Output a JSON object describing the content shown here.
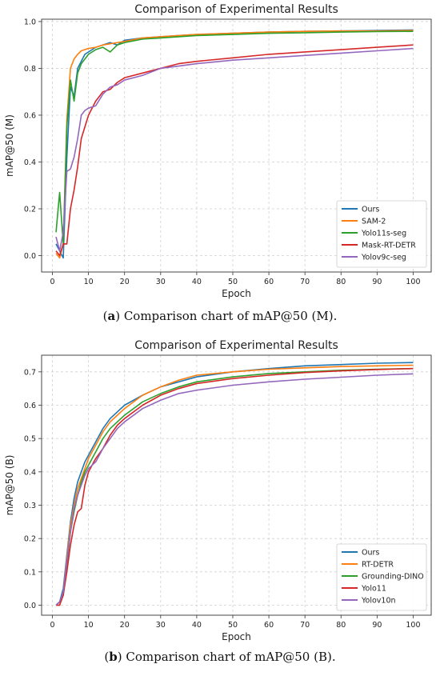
{
  "colors": {
    "c1": "#1f77b4",
    "c2": "#ff7f0e",
    "c3": "#2ca02c",
    "c4": "#d62728",
    "c5": "#9467bd"
  },
  "chart_data": [
    {
      "type": "line",
      "title": "Comparison of Experimental Results",
      "xlabel": "Epoch",
      "ylabel": "mAP@50 (M)",
      "xlim": [
        -3,
        105
      ],
      "ylim": [
        -0.07,
        1.01
      ],
      "xticks": [
        0,
        10,
        20,
        30,
        40,
        50,
        60,
        70,
        80,
        90,
        100
      ],
      "yticks": [
        0.0,
        0.2,
        0.4,
        0.6,
        0.8,
        1.0
      ],
      "ytick_labels": [
        "0.0",
        "0.2",
        "0.4",
        "0.6",
        "0.8",
        "1.0"
      ],
      "grid": true,
      "legend": "lower-right",
      "caption_label": "a",
      "caption_text": "Comparison chart of mAP@50 (M).",
      "x": [
        1,
        2,
        3,
        4,
        5,
        6,
        7,
        8,
        9,
        10,
        12,
        14,
        16,
        18,
        20,
        25,
        30,
        35,
        40,
        50,
        60,
        70,
        80,
        90,
        100
      ],
      "series": [
        {
          "name": "Ours",
          "color": "#1f77b4",
          "values": [
            0.05,
            0.02,
            -0.01,
            0.42,
            0.72,
            0.68,
            0.8,
            0.83,
            0.86,
            0.87,
            0.89,
            0.9,
            0.91,
            0.9,
            0.92,
            0.93,
            0.935,
            0.94,
            0.945,
            0.95,
            0.955,
            0.958,
            0.96,
            0.962,
            0.964
          ]
        },
        {
          "name": "SAM-2",
          "color": "#ff7f0e",
          "values": [
            0.01,
            -0.01,
            0.05,
            0.58,
            0.8,
            0.84,
            0.86,
            0.875,
            0.88,
            0.885,
            0.89,
            0.9,
            0.905,
            0.91,
            0.915,
            0.93,
            0.935,
            0.94,
            0.945,
            0.95,
            0.955,
            0.958,
            0.96,
            0.96,
            0.962
          ]
        },
        {
          "name": "Yolo11s-seg",
          "color": "#2ca02c",
          "values": [
            0.1,
            0.27,
            0.05,
            0.55,
            0.75,
            0.66,
            0.78,
            0.82,
            0.84,
            0.86,
            0.88,
            0.89,
            0.87,
            0.9,
            0.91,
            0.925,
            0.93,
            0.935,
            0.94,
            0.945,
            0.95,
            0.952,
            0.955,
            0.957,
            0.958
          ]
        },
        {
          "name": "Mask-RT-DETR",
          "color": "#d62728",
          "values": [
            0.02,
            0.0,
            0.05,
            0.05,
            0.2,
            0.28,
            0.38,
            0.5,
            0.55,
            0.6,
            0.66,
            0.7,
            0.71,
            0.74,
            0.76,
            0.78,
            0.8,
            0.82,
            0.83,
            0.845,
            0.86,
            0.87,
            0.88,
            0.89,
            0.9
          ]
        },
        {
          "name": "Yolov9c-seg",
          "color": "#9467bd",
          "values": [
            0.08,
            0.02,
            0.1,
            0.36,
            0.37,
            0.42,
            0.5,
            0.6,
            0.62,
            0.63,
            0.64,
            0.69,
            0.72,
            0.73,
            0.75,
            0.77,
            0.8,
            0.81,
            0.82,
            0.835,
            0.845,
            0.855,
            0.865,
            0.875,
            0.885
          ]
        }
      ]
    },
    {
      "type": "line",
      "title": "Comparison of Experimental Results",
      "xlabel": "Epoch",
      "ylabel": "mAP@50 (B)",
      "xlim": [
        -3,
        105
      ],
      "ylim": [
        -0.03,
        0.75
      ],
      "xticks": [
        0,
        10,
        20,
        30,
        40,
        50,
        60,
        70,
        80,
        90,
        100
      ],
      "yticks": [
        0.0,
        0.1,
        0.2,
        0.3,
        0.4,
        0.5,
        0.6,
        0.7
      ],
      "ytick_labels": [
        "0.0",
        "0.1",
        "0.2",
        "0.3",
        "0.4",
        "0.5",
        "0.6",
        "0.7"
      ],
      "grid": true,
      "legend": "lower-right",
      "caption_label": "b",
      "caption_text": "Comparison chart of mAP@50 (B).",
      "x": [
        1,
        2,
        3,
        4,
        5,
        6,
        7,
        8,
        9,
        10,
        12,
        14,
        16,
        18,
        20,
        25,
        30,
        35,
        40,
        50,
        60,
        70,
        80,
        90,
        100
      ],
      "series": [
        {
          "name": "Ours",
          "color": "#1f77b4",
          "values": [
            0.0,
            0.01,
            0.05,
            0.15,
            0.25,
            0.32,
            0.37,
            0.4,
            0.43,
            0.45,
            0.49,
            0.53,
            0.56,
            0.58,
            0.6,
            0.63,
            0.655,
            0.67,
            0.685,
            0.7,
            0.71,
            0.718,
            0.722,
            0.726,
            0.728
          ]
        },
        {
          "name": "RT-DETR",
          "color": "#ff7f0e",
          "values": [
            0.0,
            0.0,
            0.04,
            0.14,
            0.24,
            0.3,
            0.35,
            0.38,
            0.41,
            0.44,
            0.48,
            0.52,
            0.55,
            0.57,
            0.59,
            0.63,
            0.655,
            0.675,
            0.69,
            0.7,
            0.708,
            0.712,
            0.716,
            0.718,
            0.72
          ]
        },
        {
          "name": "Grounding-DINO",
          "color": "#2ca02c",
          "values": [
            0.0,
            0.01,
            0.03,
            0.12,
            0.22,
            0.28,
            0.33,
            0.37,
            0.4,
            0.42,
            0.46,
            0.5,
            0.53,
            0.55,
            0.57,
            0.61,
            0.635,
            0.655,
            0.67,
            0.685,
            0.695,
            0.7,
            0.705,
            0.708,
            0.71
          ]
        },
        {
          "name": "Yolo11",
          "color": "#d62728",
          "values": [
            0.0,
            0.0,
            0.03,
            0.1,
            0.18,
            0.24,
            0.28,
            0.29,
            0.36,
            0.4,
            0.44,
            0.47,
            0.51,
            0.54,
            0.56,
            0.6,
            0.63,
            0.65,
            0.665,
            0.68,
            0.69,
            0.698,
            0.703,
            0.707,
            0.71
          ]
        },
        {
          "name": "Yolov10n",
          "color": "#9467bd",
          "values": [
            0.0,
            0.01,
            0.04,
            0.13,
            0.22,
            0.29,
            0.33,
            0.36,
            0.39,
            0.41,
            0.43,
            0.47,
            0.5,
            0.53,
            0.55,
            0.59,
            0.615,
            0.635,
            0.645,
            0.66,
            0.67,
            0.678,
            0.684,
            0.69,
            0.694
          ]
        }
      ]
    }
  ]
}
